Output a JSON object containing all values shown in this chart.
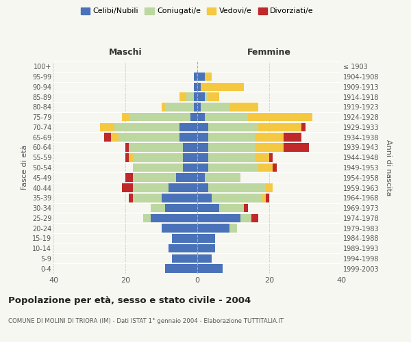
{
  "age_groups": [
    "0-4",
    "5-9",
    "10-14",
    "15-19",
    "20-24",
    "25-29",
    "30-34",
    "35-39",
    "40-44",
    "45-49",
    "50-54",
    "55-59",
    "60-64",
    "65-69",
    "70-74",
    "75-79",
    "80-84",
    "85-89",
    "90-94",
    "95-99",
    "100+"
  ],
  "birth_years": [
    "1999-2003",
    "1994-1998",
    "1989-1993",
    "1984-1988",
    "1979-1983",
    "1974-1978",
    "1969-1973",
    "1964-1968",
    "1959-1963",
    "1954-1958",
    "1949-1953",
    "1944-1948",
    "1939-1943",
    "1934-1938",
    "1929-1933",
    "1924-1928",
    "1919-1923",
    "1914-1918",
    "1909-1913",
    "1904-1908",
    "≤ 1903"
  ],
  "colors": {
    "celibi": "#4a72b8",
    "coniugati": "#bdd7a0",
    "vedovi": "#f5c842",
    "divorziati": "#c0282a"
  },
  "maschi": {
    "celibi": [
      9,
      7,
      8,
      7,
      10,
      13,
      9,
      10,
      8,
      6,
      4,
      4,
      4,
      5,
      5,
      2,
      1,
      1,
      1,
      1,
      0
    ],
    "coniugati": [
      0,
      0,
      0,
      0,
      0,
      2,
      4,
      8,
      10,
      12,
      14,
      14,
      15,
      17,
      18,
      17,
      8,
      2,
      0,
      0,
      0
    ],
    "vedovi": [
      0,
      0,
      0,
      0,
      0,
      0,
      0,
      0,
      0,
      0,
      0,
      1,
      0,
      2,
      4,
      2,
      1,
      2,
      0,
      0,
      0
    ],
    "divorziati": [
      0,
      0,
      0,
      0,
      0,
      0,
      0,
      1,
      3,
      2,
      0,
      1,
      1,
      2,
      0,
      0,
      0,
      0,
      0,
      0,
      0
    ]
  },
  "femmine": {
    "celibi": [
      7,
      4,
      5,
      5,
      9,
      12,
      6,
      4,
      3,
      2,
      3,
      3,
      3,
      3,
      3,
      2,
      1,
      2,
      1,
      2,
      0
    ],
    "coniugati": [
      0,
      0,
      0,
      0,
      2,
      3,
      7,
      14,
      16,
      10,
      14,
      13,
      13,
      13,
      14,
      12,
      8,
      1,
      0,
      0,
      0
    ],
    "vedovi": [
      0,
      0,
      0,
      0,
      0,
      0,
      0,
      1,
      2,
      0,
      4,
      4,
      8,
      8,
      12,
      18,
      8,
      3,
      12,
      2,
      0
    ],
    "divorziati": [
      0,
      0,
      0,
      0,
      0,
      2,
      1,
      1,
      0,
      0,
      1,
      1,
      7,
      5,
      1,
      0,
      0,
      0,
      0,
      0,
      0
    ]
  },
  "xlim": 40,
  "title": "Popolazione per età, sesso e stato civile - 2004",
  "subtitle": "COMUNE DI MOLINI DI TRIORA (IM) - Dati ISTAT 1° gennaio 2004 - Elaborazione TUTTITALIA.IT",
  "xlabel_left": "Maschi",
  "xlabel_right": "Femmine",
  "ylabel_left": "Fasce di età",
  "ylabel_right": "Anni di nascita",
  "legend_labels": [
    "Celibi/Nubili",
    "Coniugati/e",
    "Vedovi/e",
    "Divorziati/e"
  ],
  "background_color": "#f7f7f2"
}
